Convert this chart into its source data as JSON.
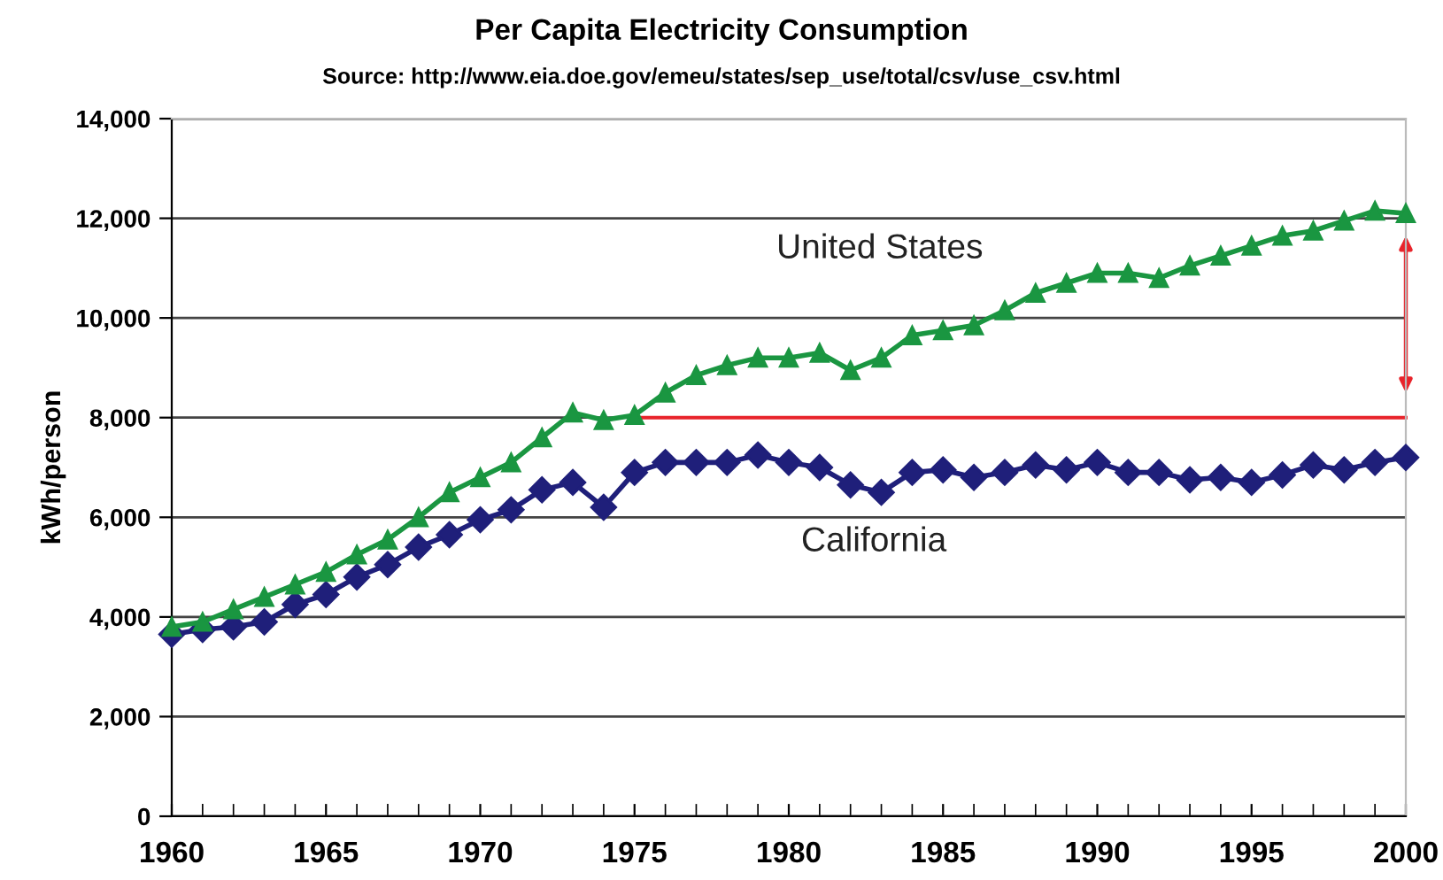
{
  "chart_data": {
    "type": "line",
    "title": "Per Capita Electricity Consumption",
    "subtitle": "Source: http://www.eia.doe.gov/emeu/states/sep_use/total/csv/use_csv.html",
    "ylabel": "kWh/person",
    "x": [
      1960,
      1961,
      1962,
      1963,
      1964,
      1965,
      1966,
      1967,
      1968,
      1969,
      1970,
      1971,
      1972,
      1973,
      1974,
      1975,
      1976,
      1977,
      1978,
      1979,
      1980,
      1981,
      1982,
      1983,
      1984,
      1985,
      1986,
      1987,
      1988,
      1989,
      1990,
      1991,
      1992,
      1993,
      1994,
      1995,
      1996,
      1997,
      1998,
      1999,
      2000
    ],
    "series": [
      {
        "name": "United States",
        "color": "#1a9641",
        "marker": "triangle",
        "values": [
          3800,
          3900,
          4150,
          4400,
          4650,
          4900,
          5250,
          5550,
          6000,
          6500,
          6800,
          7100,
          7600,
          8100,
          7950,
          8050,
          8500,
          8850,
          9050,
          9200,
          9200,
          9300,
          8950,
          9200,
          9650,
          9750,
          9850,
          10150,
          10500,
          10700,
          10900,
          10900,
          10800,
          11050,
          11250,
          11450,
          11650,
          11750,
          11950,
          12150,
          12100
        ]
      },
      {
        "name": "California",
        "color": "#1f1f7a",
        "marker": "diamond",
        "values": [
          3650,
          3750,
          3800,
          3900,
          4250,
          4450,
          4800,
          5050,
          5400,
          5650,
          5950,
          6150,
          6550,
          6700,
          6200,
          6900,
          7100,
          7100,
          7100,
          7250,
          7100,
          7000,
          6650,
          6500,
          6900,
          6950,
          6800,
          6900,
          7050,
          6950,
          7100,
          6900,
          6900,
          6750,
          6800,
          6700,
          6850,
          7050,
          6950,
          7100,
          7200
        ]
      },
      {
        "color": "#e8242b",
        "marker": "none",
        "x": [
          1975,
          2000
        ],
        "values": [
          8000,
          8000
        ]
      }
    ],
    "xlim": [
      1960,
      2000
    ],
    "xticks": [
      1960,
      1965,
      1970,
      1975,
      1980,
      1985,
      1990,
      1995,
      2000
    ],
    "ylim": [
      0,
      14000
    ],
    "yticks": [
      0,
      {
        "value": 2000,
        "label": "2,000"
      },
      {
        "value": 4000,
        "label": "4,000"
      },
      {
        "value": 6000,
        "label": "6,000"
      },
      {
        "value": 8000,
        "label": "8,000"
      },
      {
        "value": 10000,
        "label": "10,000"
      },
      {
        "value": 12000,
        "label": "12,000"
      },
      {
        "value": 14000,
        "label": "14,000"
      }
    ],
    "grid": "y",
    "legend": false
  }
}
